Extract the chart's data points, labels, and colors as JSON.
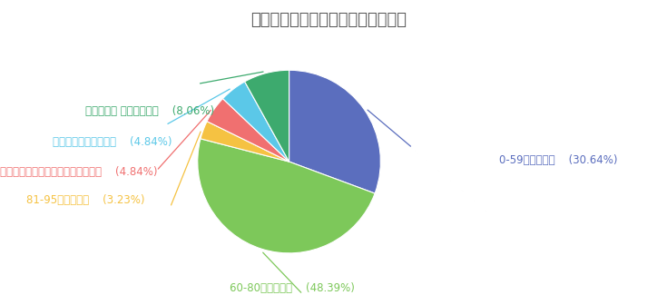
{
  "title": "您的《财务管理》考试成绩是多少？",
  "slices": [
    {
      "label": "0-59发挥失常：",
      "pct": 30.64,
      "color": "#5B6EBE"
    },
    {
      "label": "60-80安全着陆：",
      "pct": 48.39,
      "color": "#7DC85A"
    },
    {
      "label": "81-95种子选手：",
      "pct": 3.23,
      "color": "#F5C242"
    },
    {
      "label": "确认过眼神，是接近奖学金的人！：",
      "pct": 4.84,
      "color": "#F07070"
    },
    {
      "label": "没有报名该科目考试：",
      "pct": 4.84,
      "color": "#5BC8E8"
    },
    {
      "label": "该科目缺考 缺考原因是：",
      "pct": 8.06,
      "color": "#3DAA6E"
    }
  ],
  "title_fontsize": 13,
  "title_color": "#555555",
  "label_fontsize": 8.5,
  "background_color": "#FFFFFF",
  "startangle": 90
}
